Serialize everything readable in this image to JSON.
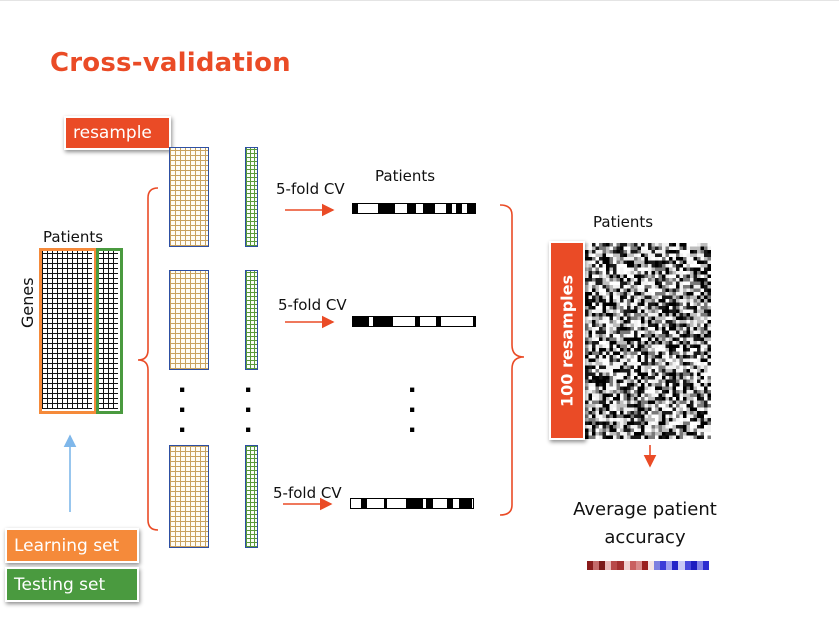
{
  "title": "Cross-validation",
  "resample_label": "resample",
  "patients_label": "Patients",
  "genes_label": "Genes",
  "cv_label": "5-fold CV",
  "resamples_label": "100 resamples",
  "average_label_line1": "Average patient",
  "average_label_line2": "accuracy",
  "legend": {
    "learning": "Learning set",
    "testing": "Testing set"
  },
  "colors": {
    "accent": "#ea4b26",
    "learning": "#f58a3a",
    "testing": "#4a9a3f",
    "arrow_blue": "#7fb7ea"
  },
  "accuracy_strip": [
    "#8a1c1c",
    "#c46a6a",
    "#7a1818",
    "#e7b7b7",
    "#b84a4a",
    "#a33030",
    "#f0d2d2",
    "#c96060",
    "#d98a8a",
    "#9a2020",
    "#f6e4e4",
    "#7f7fe0",
    "#3b3bd8",
    "#9f9ff0",
    "#2525c8",
    "#c9c9f6",
    "#4848dd",
    "#1d1dc0",
    "#8585e6",
    "#2e2ed0"
  ]
}
